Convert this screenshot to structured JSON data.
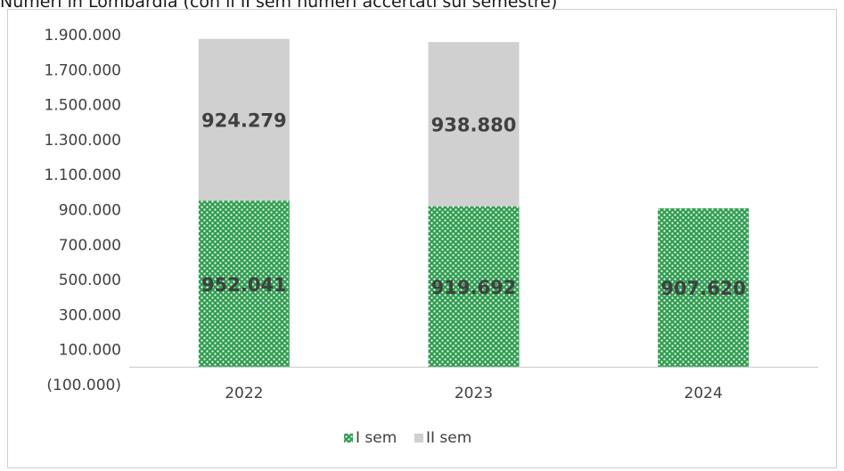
{
  "header": {
    "title": "Numeri in Lombardia (con il II sem numeri accertati sul semestre)"
  },
  "chart_data": {
    "type": "bar",
    "stacked": true,
    "title": "",
    "xlabel": "",
    "ylabel": "",
    "categories": [
      "2022",
      "2023",
      "2024"
    ],
    "series": [
      {
        "name": "I sem",
        "values": [
          952041,
          919692,
          907620
        ],
        "color": "#2e9e4f",
        "pattern": "green-dotted"
      },
      {
        "name": "II sem",
        "values": [
          924279,
          938880,
          null
        ],
        "color": "#d0d0d0"
      }
    ],
    "data_labels": [
      [
        "952.041",
        "919.692",
        "907.620"
      ],
      [
        "924.279",
        "938.880",
        ""
      ]
    ],
    "ylim": [
      -100000,
      1900000
    ],
    "yticks": [
      -100000,
      100000,
      300000,
      500000,
      700000,
      900000,
      1100000,
      1300000,
      1500000,
      1700000,
      1900000
    ],
    "ytick_labels": [
      "(100.000)",
      "100.000",
      "300.000",
      "500.000",
      "700.000",
      "900.000",
      "1.100.000",
      "1.300.000",
      "1.500.000",
      "1.700.000",
      "1.900.000"
    ],
    "grid": false,
    "legend_position": "bottom",
    "legend": [
      "I sem",
      "II sem"
    ]
  }
}
